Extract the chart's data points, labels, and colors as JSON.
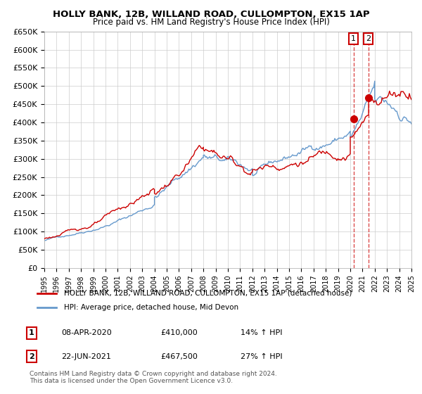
{
  "title": "HOLLY BANK, 12B, WILLAND ROAD, CULLOMPTON, EX15 1AP",
  "subtitle": "Price paid vs. HM Land Registry's House Price Index (HPI)",
  "legend_entry1": "HOLLY BANK, 12B, WILLAND ROAD, CULLOMPTON, EX15 1AP (detached house)",
  "legend_entry2": "HPI: Average price, detached house, Mid Devon",
  "annotation1_num": "1",
  "annotation1_date": "08-APR-2020",
  "annotation1_price": "£410,000",
  "annotation1_hpi": "14% ↑ HPI",
  "annotation2_num": "2",
  "annotation2_date": "22-JUN-2021",
  "annotation2_price": "£467,500",
  "annotation2_hpi": "27% ↑ HPI",
  "footer": "Contains HM Land Registry data © Crown copyright and database right 2024.\nThis data is licensed under the Open Government Licence v3.0.",
  "red_color": "#cc0000",
  "blue_color": "#6699cc",
  "sale1_x": 2020.27,
  "sale1_y": 410000,
  "sale2_x": 2021.47,
  "sale2_y": 467500,
  "xmin": 1995,
  "xmax": 2025,
  "ymin": 0,
  "ymax": 650000,
  "yticks": [
    0,
    50000,
    100000,
    150000,
    200000,
    250000,
    300000,
    350000,
    400000,
    450000,
    500000,
    550000,
    600000,
    650000
  ]
}
